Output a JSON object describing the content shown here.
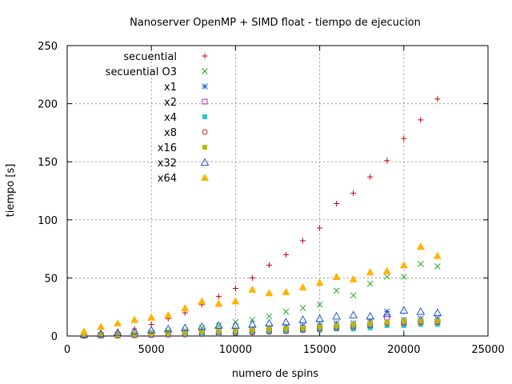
{
  "chart_data": {
    "type": "scatter",
    "title": "Nanoserver OpenMP + SIMD float - tiempo de ejecucion",
    "xlabel": "numero de spins",
    "ylabel": "tiempo [s]",
    "xlim": [
      0,
      25000
    ],
    "ylim": [
      0,
      250
    ],
    "xticks": [
      0,
      5000,
      10000,
      15000,
      20000,
      25000
    ],
    "yticks": [
      0,
      50,
      100,
      150,
      200,
      250
    ],
    "grid": true,
    "legend_position": "top-left",
    "x": [
      1000,
      2000,
      3000,
      4000,
      5000,
      6000,
      7000,
      8000,
      9000,
      10000,
      11000,
      12000,
      13000,
      14000,
      15000,
      16000,
      17000,
      18000,
      19000,
      20000,
      21000,
      22000
    ],
    "series": [
      {
        "name": "secuential",
        "marker": "plus",
        "color": "#cc0000",
        "values": [
          1,
          2,
          3,
          6,
          10,
          15,
          20,
          27,
          34,
          41,
          50,
          61,
          70,
          82,
          93,
          114,
          123,
          137,
          151,
          170,
          186,
          204
        ]
      },
      {
        "name": "secuential O3",
        "marker": "cross",
        "color": "#22aa22",
        "values": [
          0.5,
          1,
          1,
          2,
          3,
          4,
          5,
          7,
          9,
          12,
          14,
          17,
          21,
          24,
          27,
          39,
          35,
          45,
          51,
          51,
          62,
          60
        ]
      },
      {
        "name": "x1",
        "marker": "star",
        "color": "#2a6fd6",
        "values": [
          0.3,
          0.5,
          0.8,
          1.5,
          2,
          3,
          3,
          4,
          5,
          5,
          6,
          7,
          8,
          9,
          10,
          11,
          11,
          13,
          21,
          14,
          15,
          15
        ]
      },
      {
        "name": "x2",
        "marker": "square-open",
        "color": "#b030b0",
        "values": [
          0.2,
          0.3,
          0.5,
          0.8,
          1,
          1.5,
          2,
          2.5,
          3,
          3.5,
          4,
          5,
          5,
          6,
          7,
          7,
          8,
          9,
          16,
          11,
          12,
          12
        ]
      },
      {
        "name": "x4",
        "marker": "square-filled",
        "color": "#22cccc",
        "values": [
          0.1,
          0.2,
          0.3,
          0.5,
          0.8,
          1,
          1.2,
          1.5,
          2,
          2.5,
          3,
          3.5,
          4,
          5,
          5,
          6,
          6,
          7,
          9,
          9,
          10,
          10
        ]
      },
      {
        "name": "x8",
        "marker": "circle-open",
        "color": "#cc2222",
        "values": [
          0.1,
          0.2,
          0.3,
          0.5,
          0.8,
          1,
          1.2,
          1.5,
          2,
          2.5,
          3,
          3.5,
          4,
          5,
          6,
          7,
          8,
          9,
          11,
          11,
          12,
          12
        ]
      },
      {
        "name": "x16",
        "marker": "square-filled",
        "color": "#b8b800",
        "values": [
          0.5,
          0.8,
          1,
          1.5,
          2,
          2.5,
          3,
          4,
          4.5,
          5,
          5.5,
          6,
          6.5,
          7,
          8,
          9,
          10,
          11,
          12,
          13,
          13,
          13
        ]
      },
      {
        "name": "x32",
        "marker": "triangle-open",
        "color": "#2255cc",
        "values": [
          1.5,
          2,
          3,
          4,
          5,
          6,
          7,
          8,
          9,
          9,
          10,
          11,
          12,
          14,
          15,
          17,
          18,
          17,
          19,
          22,
          21,
          20
        ]
      },
      {
        "name": "x64",
        "marker": "triangle-filled",
        "color": "#ffb300",
        "values": [
          4,
          8,
          11,
          14,
          16,
          18,
          24,
          30,
          28,
          30,
          40,
          37,
          38,
          42,
          46,
          51,
          49,
          55,
          56,
          61,
          77,
          69
        ]
      }
    ]
  }
}
